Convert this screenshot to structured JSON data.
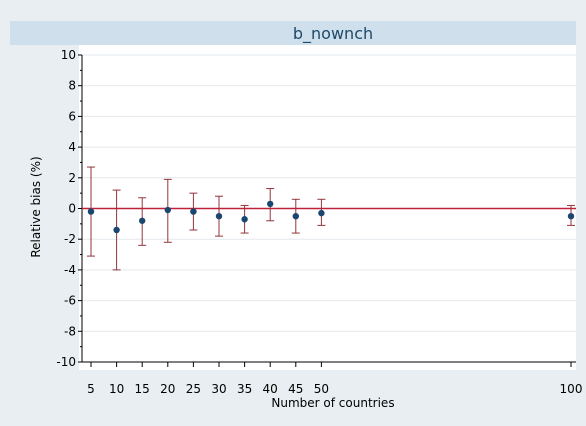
{
  "chart_data": {
    "type": "scatter",
    "title": "b_nownch",
    "xlabel": "Number of countries",
    "ylabel": "Relative bias (%)",
    "ylim": [
      -10,
      10
    ],
    "yticks": [
      10,
      8,
      6,
      4,
      2,
      0,
      -2,
      -4,
      -6,
      -8,
      -10
    ],
    "xticks": [
      5,
      10,
      15,
      20,
      25,
      30,
      35,
      40,
      45,
      50,
      100
    ],
    "x_axis_break": "between 50 and 100",
    "grid": "horizontal",
    "reference_line": {
      "y": 0,
      "color": "#c0203a"
    },
    "series": [
      {
        "x": [
          5,
          10,
          15,
          20,
          25,
          30,
          35,
          40,
          45,
          50,
          100
        ],
        "y": [
          -0.2,
          -1.4,
          -0.8,
          -0.1,
          -0.2,
          -0.5,
          -0.7,
          0.3,
          -0.5,
          -0.3,
          -0.5
        ],
        "lower": [
          -3.1,
          -4.0,
          -2.4,
          -2.2,
          -1.4,
          -1.8,
          -1.6,
          -0.8,
          -1.6,
          -1.1,
          -1.1
        ],
        "upper": [
          2.7,
          1.2,
          0.7,
          1.9,
          1.0,
          0.8,
          0.2,
          1.3,
          0.6,
          0.6,
          0.2
        ]
      }
    ],
    "colors": {
      "background": "#e8eef1",
      "title_bar": "#cfdfec",
      "title_text": "#1e4a6a",
      "plot_bg": "#ffffff",
      "gridline": "#e3e9ed",
      "point": "#1a476f",
      "error_bar": "#90353b",
      "zero_line": "#c0203a"
    }
  }
}
